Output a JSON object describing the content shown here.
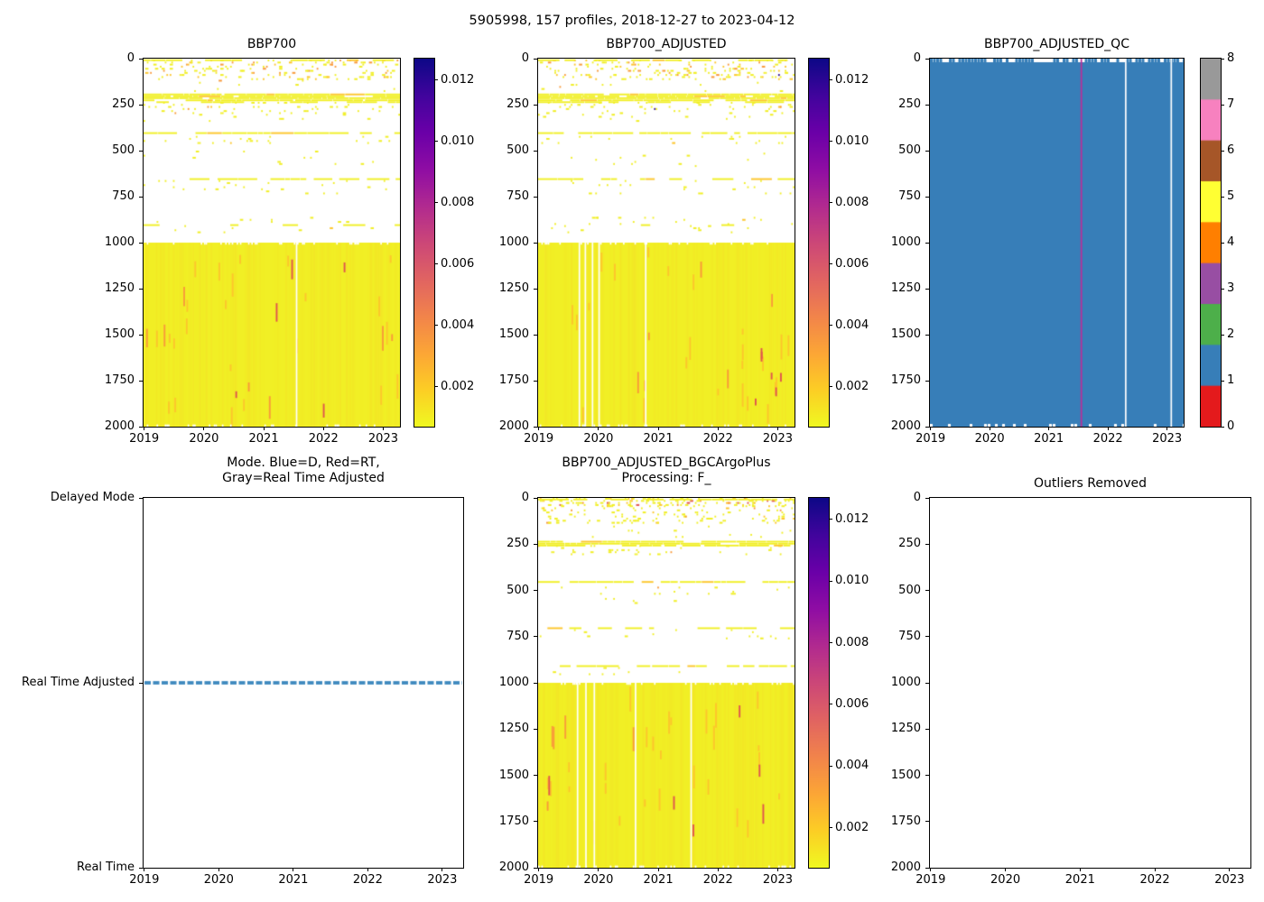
{
  "figure": {
    "title": "5905998, 157 profiles, 2018-12-27 to 2023-04-12",
    "background": "#ffffff"
  },
  "colors": {
    "heatmap_yellow": "#f1ef25",
    "heatmap_yellow_deep": "#fdc62c",
    "heatmap_orange": "#f99a3a",
    "heatmap_red": "#e0564e",
    "heatmap_navy": "#27058f",
    "qc_fill_blue": "#377eb8",
    "qc_magenta_line": "#b5309b",
    "mode_line_blue": "#1f77b4"
  },
  "colorbars": {
    "bbp": {
      "vmin": 0.0007,
      "vmax": 0.0127,
      "tick_labels": [
        "0.012",
        "0.010",
        "0.008",
        "0.006",
        "0.004",
        "0.002"
      ],
      "tick_values": [
        0.012,
        0.01,
        0.008,
        0.006,
        0.004,
        0.002
      ],
      "cmap_top_to_bottom": [
        "#0d0887",
        "#41049d",
        "#6a00a8",
        "#8f0da4",
        "#b12a90",
        "#cc4778",
        "#e16462",
        "#f2844b",
        "#fca636",
        "#fcce25",
        "#f0f921"
      ]
    },
    "qc": {
      "tick_labels": [
        "8",
        "7",
        "6",
        "5",
        "4",
        "3",
        "2",
        "1",
        "0"
      ],
      "tick_values": [
        8,
        7,
        6,
        5,
        4,
        3,
        2,
        1,
        0
      ],
      "categories": [
        {
          "value": 0,
          "color": "#e41a1c"
        },
        {
          "value": 1,
          "color": "#377eb8"
        },
        {
          "value": 2,
          "color": "#4daf4a"
        },
        {
          "value": 3,
          "color": "#984ea3"
        },
        {
          "value": 4,
          "color": "#ff7f00"
        },
        {
          "value": 5,
          "color": "#ffff33"
        },
        {
          "value": 6,
          "color": "#a65628"
        },
        {
          "value": 7,
          "color": "#f781bf"
        },
        {
          "value": 8,
          "color": "#999999"
        }
      ]
    }
  },
  "chart_data": [
    {
      "id": "bbp700",
      "type": "heatmap",
      "title": "BBP700",
      "x_range": [
        2018.99,
        2023.28
      ],
      "depth_range": [
        0,
        2000
      ],
      "x_ticks": [
        2019,
        2020,
        2021,
        2022,
        2023
      ],
      "depth_ticks": [
        0,
        250,
        500,
        750,
        1000,
        1250,
        1500,
        1750,
        2000
      ],
      "n_profiles": 157,
      "colorbar": "bbp",
      "seed": 11,
      "speckle_bands": [
        {
          "depth": [
            5,
            115
          ],
          "density": 0.1,
          "orange_mix": 0.3
        },
        {
          "depth": [
            115,
            180
          ],
          "density": 0.012,
          "orange_mix": 0.1
        },
        {
          "depth": [
            235,
            300
          ],
          "density": 0.055,
          "orange_mix": 0.08
        },
        {
          "depth": [
            300,
            335
          ],
          "density": 0.012,
          "orange_mix": 0.05
        },
        {
          "depth": [
            420,
            465
          ],
          "density": 0.035,
          "orange_mix": 0.05
        },
        {
          "depth": [
            500,
            590
          ],
          "density": 0.012,
          "orange_mix": 0.05
        },
        {
          "depth": [
            660,
            730
          ],
          "density": 0.02,
          "orange_mix": 0.05
        },
        {
          "depth": [
            860,
            940
          ],
          "density": 0.015,
          "orange_mix": 0.05
        }
      ],
      "dash_lines": [
        {
          "depth": 4,
          "coverage": 0.55
        },
        {
          "depth": 190,
          "coverage": 0.97
        },
        {
          "depth": 200,
          "coverage": 0.9
        },
        {
          "depth": 210,
          "coverage": 0.95
        },
        {
          "depth": 222,
          "coverage": 0.85
        },
        {
          "depth": 232,
          "coverage": 0.72
        },
        {
          "depth": 400,
          "coverage": 0.93
        },
        {
          "depth": 650,
          "coverage": 0.65
        },
        {
          "depth": 900,
          "coverage": 0.4
        }
      ],
      "solid_block": {
        "depth": [
          1000,
          2000
        ],
        "gap_years": [
          2021.55
        ],
        "orange_streaks": 30,
        "red_streaks": 5
      }
    },
    {
      "id": "bbp700_adjusted",
      "type": "heatmap",
      "title": "BBP700_ADJUSTED",
      "x_range": [
        2018.99,
        2023.28
      ],
      "depth_range": [
        0,
        2000
      ],
      "x_ticks": [
        2019,
        2020,
        2021,
        2022,
        2023
      ],
      "depth_ticks": [
        0,
        250,
        500,
        750,
        1000,
        1250,
        1500,
        1750,
        2000
      ],
      "n_profiles": 157,
      "colorbar": "bbp",
      "seed": 22,
      "speckle_bands": [
        {
          "depth": [
            5,
            115
          ],
          "density": 0.1,
          "orange_mix": 0.3
        },
        {
          "depth": [
            115,
            180
          ],
          "density": 0.012,
          "orange_mix": 0.1
        },
        {
          "depth": [
            235,
            300
          ],
          "density": 0.055,
          "orange_mix": 0.08
        },
        {
          "depth": [
            300,
            335
          ],
          "density": 0.012,
          "orange_mix": 0.05
        },
        {
          "depth": [
            420,
            465
          ],
          "density": 0.035,
          "orange_mix": 0.05
        },
        {
          "depth": [
            500,
            590
          ],
          "density": 0.012,
          "orange_mix": 0.05
        },
        {
          "depth": [
            660,
            730
          ],
          "density": 0.02,
          "orange_mix": 0.05
        },
        {
          "depth": [
            860,
            940
          ],
          "density": 0.015,
          "orange_mix": 0.05
        }
      ],
      "dash_lines": [
        {
          "depth": 4,
          "coverage": 0.55
        },
        {
          "depth": 190,
          "coverage": 0.97
        },
        {
          "depth": 200,
          "coverage": 0.9
        },
        {
          "depth": 210,
          "coverage": 0.95
        },
        {
          "depth": 222,
          "coverage": 0.85
        },
        {
          "depth": 232,
          "coverage": 0.72
        },
        {
          "depth": 400,
          "coverage": 0.93
        },
        {
          "depth": 650,
          "coverage": 0.65
        },
        {
          "depth": 900,
          "coverage": 0.4
        }
      ],
      "solid_block": {
        "depth": [
          1000,
          2000
        ],
        "gap_years": [
          2019.68,
          2019.78,
          2019.9,
          2020.01,
          2020.79
        ],
        "orange_streaks": 30,
        "red_streaks": 6
      }
    },
    {
      "id": "bbp700_adjusted_qc",
      "type": "qc-heatmap",
      "title": "BBP700_ADJUSTED_QC",
      "x_range": [
        2018.99,
        2023.28
      ],
      "depth_range": [
        0,
        2000
      ],
      "x_ticks": [
        2019,
        2020,
        2021,
        2022,
        2023
      ],
      "depth_ticks": [
        0,
        250,
        500,
        750,
        1000,
        1250,
        1500,
        1750,
        2000
      ],
      "colorbar": "qc",
      "seed": 33,
      "fill_qc_value": 1,
      "magenta_line_year": 2021.55,
      "white_line_years": [
        2022.3,
        2023.07
      ]
    },
    {
      "id": "mode",
      "type": "line",
      "title_lines": [
        "Mode. Blue=D, Red=RT,",
        "Gray=Real Time Adjusted"
      ],
      "x_range": [
        2018.99,
        2023.28
      ],
      "x_ticks": [
        2019,
        2020,
        2021,
        2022,
        2023
      ],
      "y_categories": [
        "Delayed Mode",
        "Real Time Adjusted",
        "Real Time"
      ],
      "line": {
        "at_category": "Real Time Adjusted",
        "style": "dashed",
        "color": "#1f77b4",
        "x_span": [
          2019.0,
          2023.28
        ]
      }
    },
    {
      "id": "bbp700_adjusted_bgcargoplus",
      "type": "heatmap",
      "title_lines": [
        "BBP700_ADJUSTED_BGCArgoPlus",
        "Processing: F_"
      ],
      "x_range": [
        2018.99,
        2023.28
      ],
      "depth_range": [
        0,
        2000
      ],
      "x_ticks": [
        2019,
        2020,
        2021,
        2022,
        2023
      ],
      "depth_ticks": [
        0,
        250,
        500,
        750,
        1000,
        1250,
        1500,
        1750,
        2000
      ],
      "n_profiles": 157,
      "colorbar": "bbp",
      "seed": 44,
      "speckle_bands": [
        {
          "depth": [
            0,
            40
          ],
          "density": 0.2,
          "orange_mix": 0.25,
          "red_mix": 0.06
        },
        {
          "depth": [
            40,
            130
          ],
          "density": 0.09,
          "orange_mix": 0.12
        },
        {
          "depth": [
            150,
            210
          ],
          "density": 0.012,
          "orange_mix": 0.05
        },
        {
          "depth": [
            255,
            305
          ],
          "density": 0.06,
          "orange_mix": 0.06
        },
        {
          "depth": [
            480,
            515
          ],
          "density": 0.03,
          "orange_mix": 0.05
        },
        {
          "depth": [
            530,
            570
          ],
          "density": 0.012,
          "orange_mix": 0.05
        },
        {
          "depth": [
            710,
            755
          ],
          "density": 0.02,
          "orange_mix": 0.05
        },
        {
          "depth": [
            915,
            950
          ],
          "density": 0.02,
          "orange_mix": 0.05
        }
      ],
      "dash_lines": [
        {
          "depth": 4,
          "coverage": 0.8
        },
        {
          "depth": 232,
          "coverage": 0.92
        },
        {
          "depth": 243,
          "coverage": 0.85
        },
        {
          "depth": 253,
          "coverage": 0.78
        },
        {
          "depth": 450,
          "coverage": 0.9
        },
        {
          "depth": 700,
          "coverage": 0.5
        },
        {
          "depth": 905,
          "coverage": 0.65
        }
      ],
      "solid_block": {
        "depth": [
          1000,
          2000
        ],
        "gap_years": [
          2019.65,
          2019.79,
          2019.93,
          2020.62,
          2021.55
        ],
        "orange_streaks": 32,
        "red_streaks": 6
      }
    },
    {
      "id": "outliers_removed",
      "type": "empty",
      "title": "Outliers Removed",
      "x_range": [
        2018.99,
        2023.28
      ],
      "depth_range": [
        0,
        2000
      ],
      "x_ticks": [
        2019,
        2020,
        2021,
        2022,
        2023
      ],
      "depth_ticks": [
        0,
        250,
        500,
        750,
        1000,
        1250,
        1500,
        1750,
        2000
      ]
    }
  ]
}
